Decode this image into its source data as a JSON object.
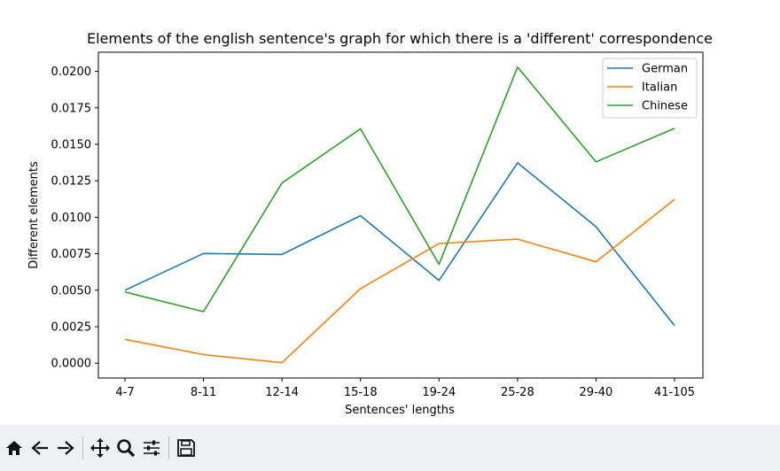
{
  "chart_data": {
    "type": "line",
    "title": "Elements of the english sentence's graph for which there is a 'different' correspondence",
    "xlabel": "Sentences' lengths",
    "ylabel": "Different elements",
    "categories": [
      "4-7",
      "8-11",
      "12-14",
      "15-18",
      "19-24",
      "25-28",
      "29-40",
      "41-105"
    ],
    "ylim": [
      -0.00102,
      0.02131
    ],
    "yticks": [
      "0.0000",
      "0.0025",
      "0.0050",
      "0.0075",
      "0.0100",
      "0.0125",
      "0.0150",
      "0.0175",
      "0.0200"
    ],
    "ytick_values": [
      0,
      0.0025,
      0.005,
      0.0075,
      0.01,
      0.0125,
      0.015,
      0.0175,
      0.02
    ],
    "grid": false,
    "legend_position": "top-right",
    "series": [
      {
        "name": "German",
        "color": "#1f77b4",
        "values": [
          0.005,
          0.00752,
          0.00745,
          0.01011,
          0.00567,
          0.01373,
          0.00935,
          0.00258
        ]
      },
      {
        "name": "Italian",
        "color": "#ff7f0e",
        "values": [
          0.00163,
          0.00059,
          3e-05,
          0.0051,
          0.0082,
          0.0085,
          0.00695,
          0.01122
        ]
      },
      {
        "name": "Chinese",
        "color": "#2ca02c",
        "values": [
          0.00488,
          0.00353,
          0.01235,
          0.01606,
          0.00678,
          0.02029,
          0.0138,
          0.01609
        ]
      }
    ]
  },
  "toolbar": {
    "items": [
      {
        "name": "home-icon",
        "label": "Home"
      },
      {
        "name": "back-icon",
        "label": "Back"
      },
      {
        "name": "forward-icon",
        "label": "Forward"
      },
      {
        "name": "pan-icon",
        "label": "Pan"
      },
      {
        "name": "zoom-icon",
        "label": "Zoom"
      },
      {
        "name": "subplots-icon",
        "label": "Subplots"
      },
      {
        "name": "save-icon",
        "label": "Save"
      }
    ]
  }
}
